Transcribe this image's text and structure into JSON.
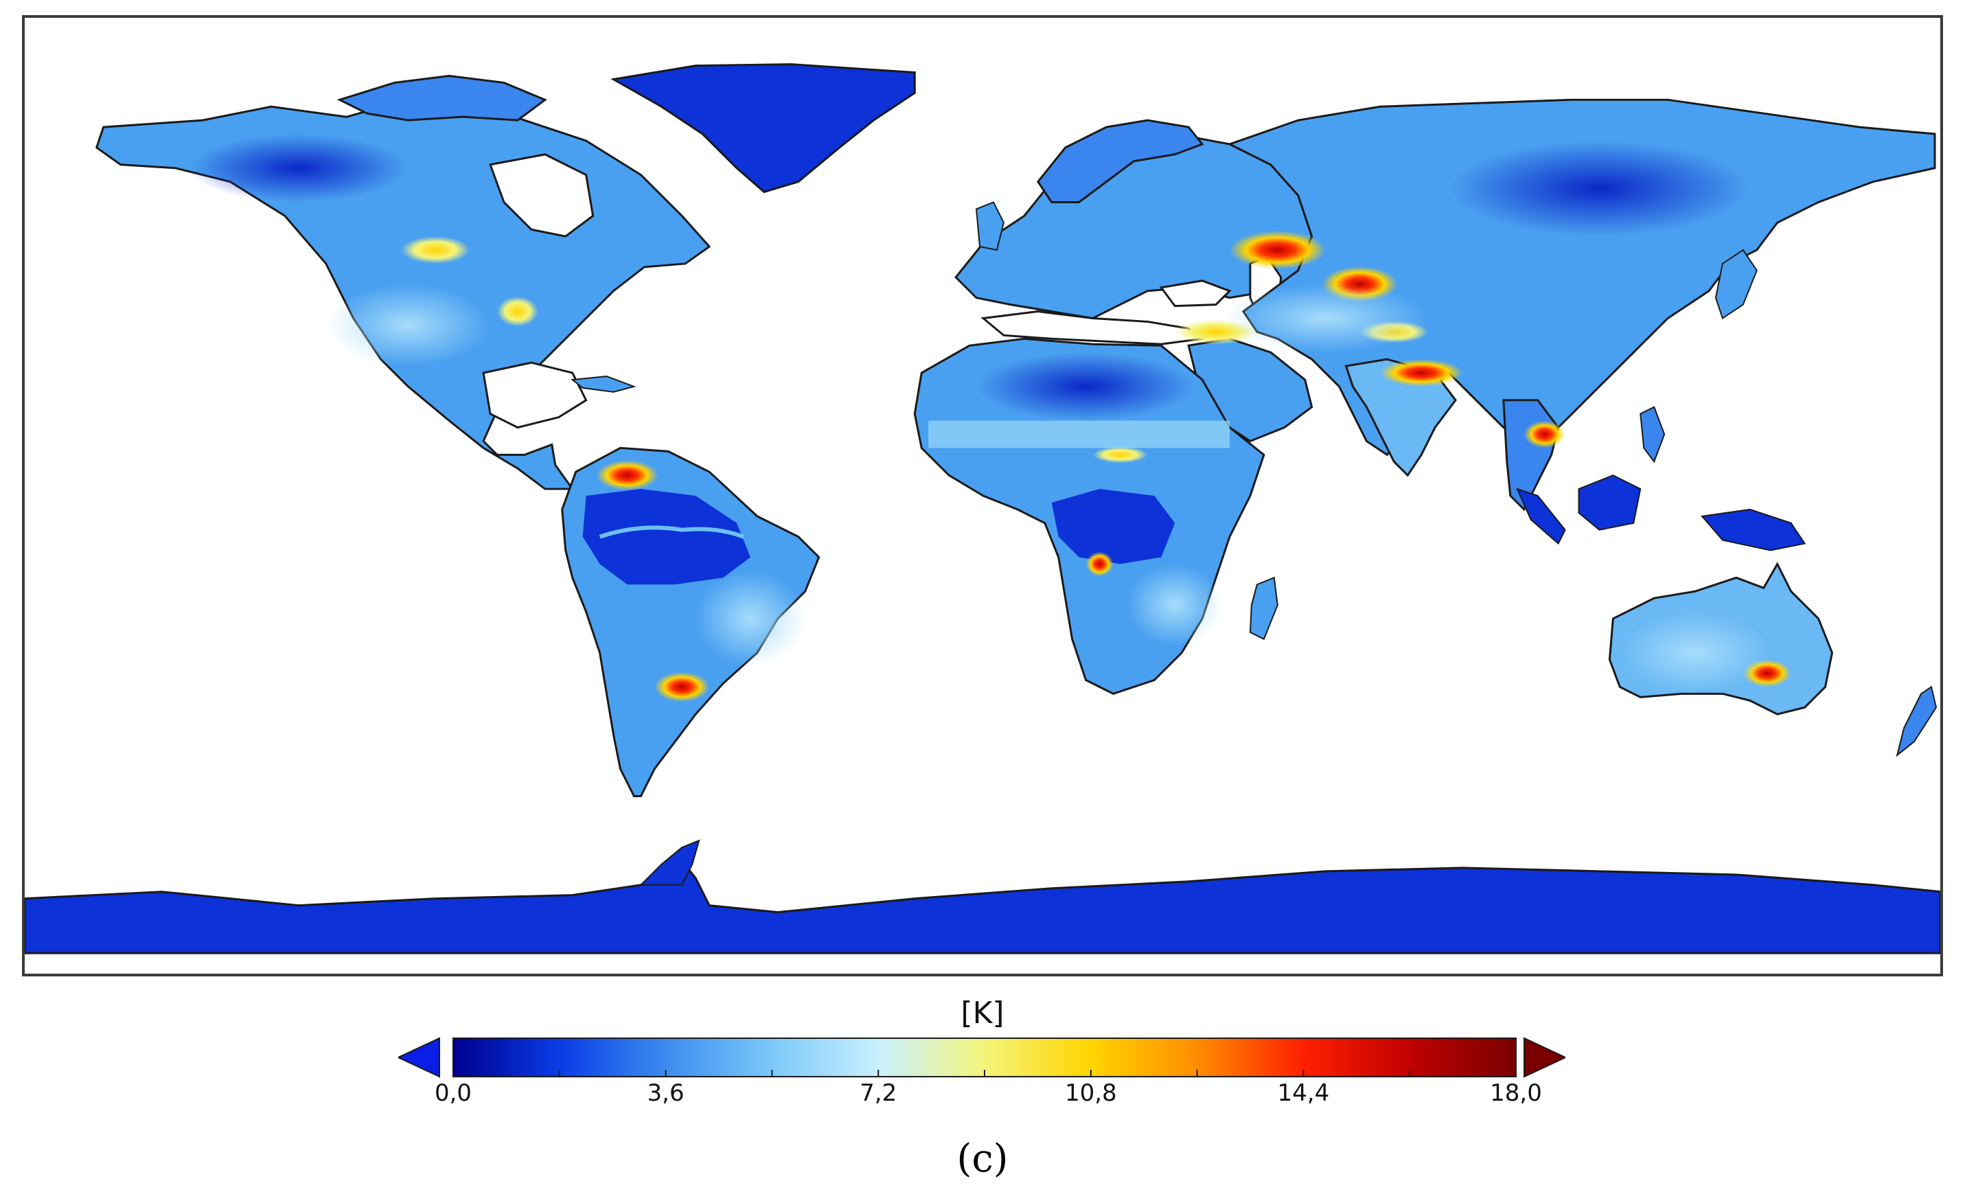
{
  "colorbar": {
    "unit_label": "[K]",
    "min": 0.0,
    "max": 18.0,
    "tick_labels": [
      "0,0",
      "3,6",
      "7,2",
      "10,8",
      "14,4",
      "18,0"
    ],
    "extend": "both",
    "colormap": [
      "#00008f",
      "#0a3ce6",
      "#3c8cf0",
      "#7cc8f8",
      "#c8f0ff",
      "#f4f47a",
      "#ffd400",
      "#ff8c00",
      "#ff2000",
      "#c00000",
      "#7a0000"
    ],
    "under_color": "#0a1ee6",
    "over_color": "#7a0000"
  },
  "panel_label": "(c)",
  "colors": {
    "ocean": "#ffffff",
    "coastline": "#1a1a1a",
    "low_value_land": "#0c32d8",
    "mid_value_land": "#4aa0f0",
    "frame": "#3c3c3c"
  }
}
